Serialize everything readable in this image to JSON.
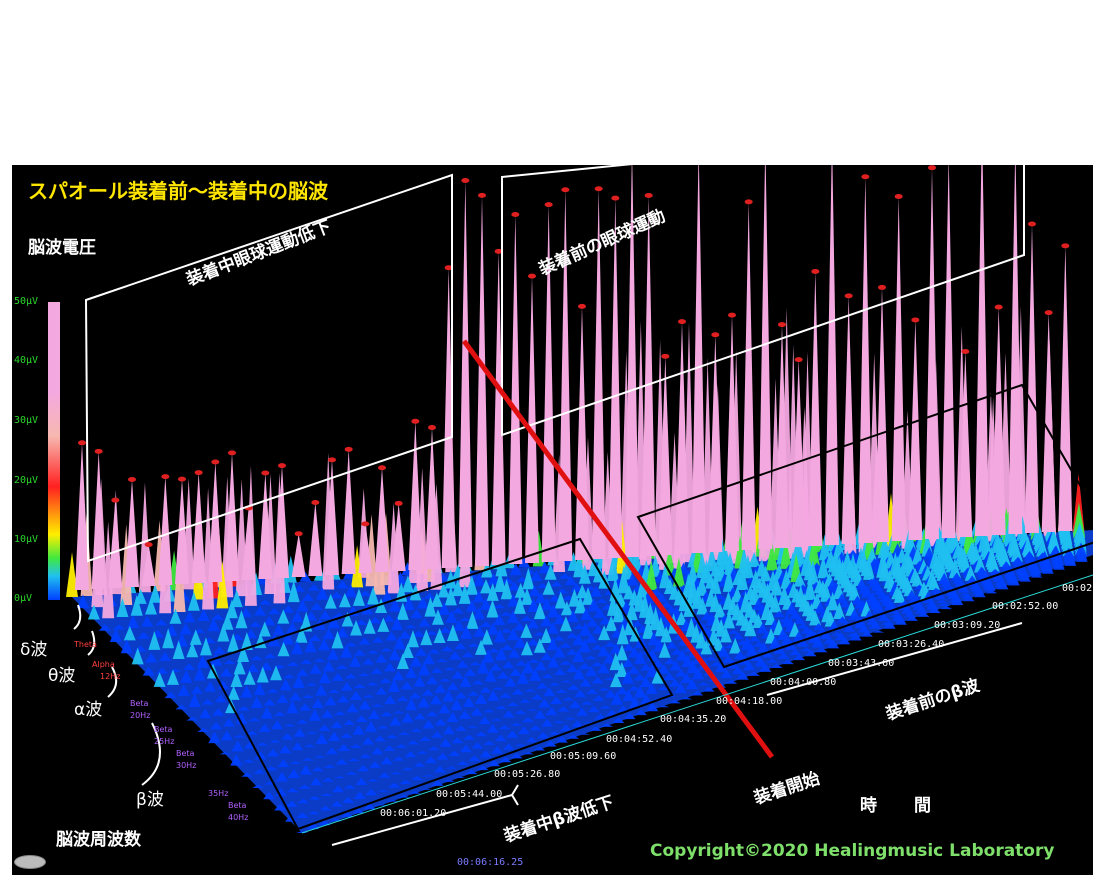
{
  "title": "スパオール装着前〜装着中の脳波",
  "z_axis_label": "脳波電圧",
  "z_ticks": [
    "50μV",
    "40μV",
    "30μV",
    "20μV",
    "10μV",
    "0μV"
  ],
  "frequency_axis_label": "脳波周波数",
  "time_axis_label": "時　間",
  "bands": {
    "delta": "δ波",
    "theta": "θ波",
    "alpha": "α波",
    "beta": "β波"
  },
  "band_tick_labels": [
    "Theta",
    "Alpha",
    "12Hz",
    "Beta",
    "20Hz",
    "Beta",
    "25Hz",
    "Beta",
    "30Hz",
    "35Hz",
    "Beta",
    "40Hz"
  ],
  "time_ticks": [
    "00:06:01.20",
    "00:05:44.00",
    "00:05:26.80",
    "00:05:09.60",
    "00:04:52.40",
    "00:04:35.20",
    "00:04:18.00",
    "00:04:00.80",
    "00:03:43.60",
    "00:03:26.40",
    "00:03:09.20",
    "00:02:52.00",
    "00:02"
  ],
  "annotations": {
    "eye_movement_during": "装着中眼球運動低下",
    "eye_movement_before": "装着前の眼球運動",
    "beta_during": "装着中β波低下",
    "beta_before": "装着前のβ波",
    "start": "装着開始"
  },
  "status_readout": "00:06:16.25",
  "copyright": "Copyright©2020 Healingmusic Laboratory",
  "chart_data": {
    "type": "heatmap",
    "title": "スパオール装着前〜装着中の脳波",
    "zlabel": "脳波電圧",
    "zlim": [
      0,
      50
    ],
    "z_unit": "μV",
    "frequency_label": "脳波周波数",
    "time_label": "時　間",
    "time_ticks": [
      "00:06:01.20",
      "00:05:44.00",
      "00:05:26.80",
      "00:05:09.60",
      "00:04:52.40",
      "00:04:35.20",
      "00:04:18.00",
      "00:04:00.80",
      "00:03:43.60",
      "00:03:26.40",
      "00:03:09.20",
      "00:02:52.00"
    ],
    "start_marker_time": "00:04:18.00",
    "colorscale": [
      "#0040ff",
      "#20c0f0",
      "#40e840",
      "#ffee00",
      "#ff2020",
      "#f7b8b0",
      "#f4a8e0"
    ]
  }
}
